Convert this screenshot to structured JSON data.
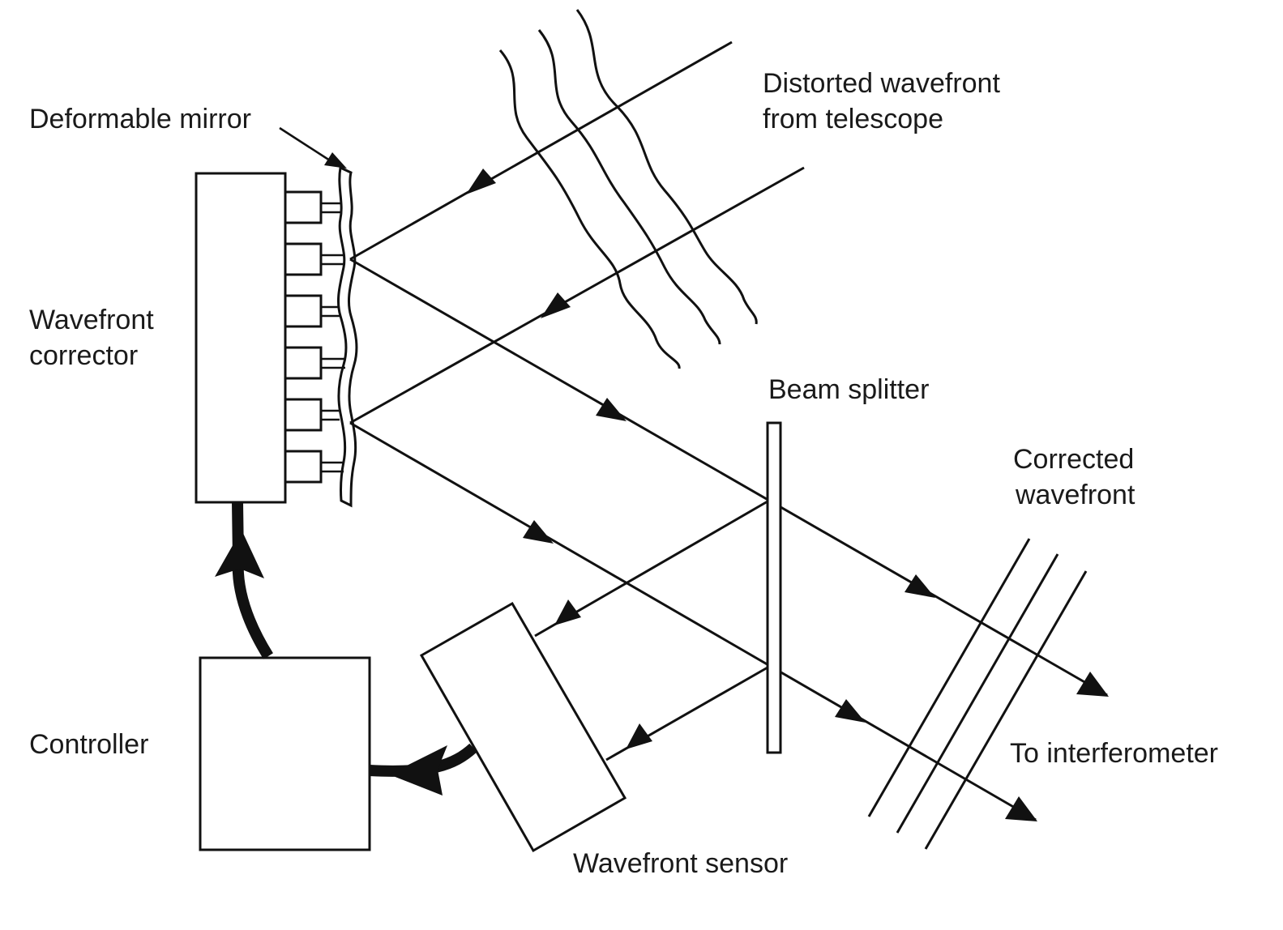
{
  "labels": {
    "deformable_mirror": "Deformable mirror",
    "distorted_line1": "Distorted wavefront",
    "distorted_line2": "from telescope",
    "corrector_line1": "Wavefront",
    "corrector_line2": "corrector",
    "beam_splitter": "Beam splitter",
    "corrected_line1": "Corrected",
    "corrected_line2": "wavefront",
    "controller": "Controller",
    "to_interferometer": "To interferometer",
    "wavefront_sensor": "Wavefront sensor"
  }
}
